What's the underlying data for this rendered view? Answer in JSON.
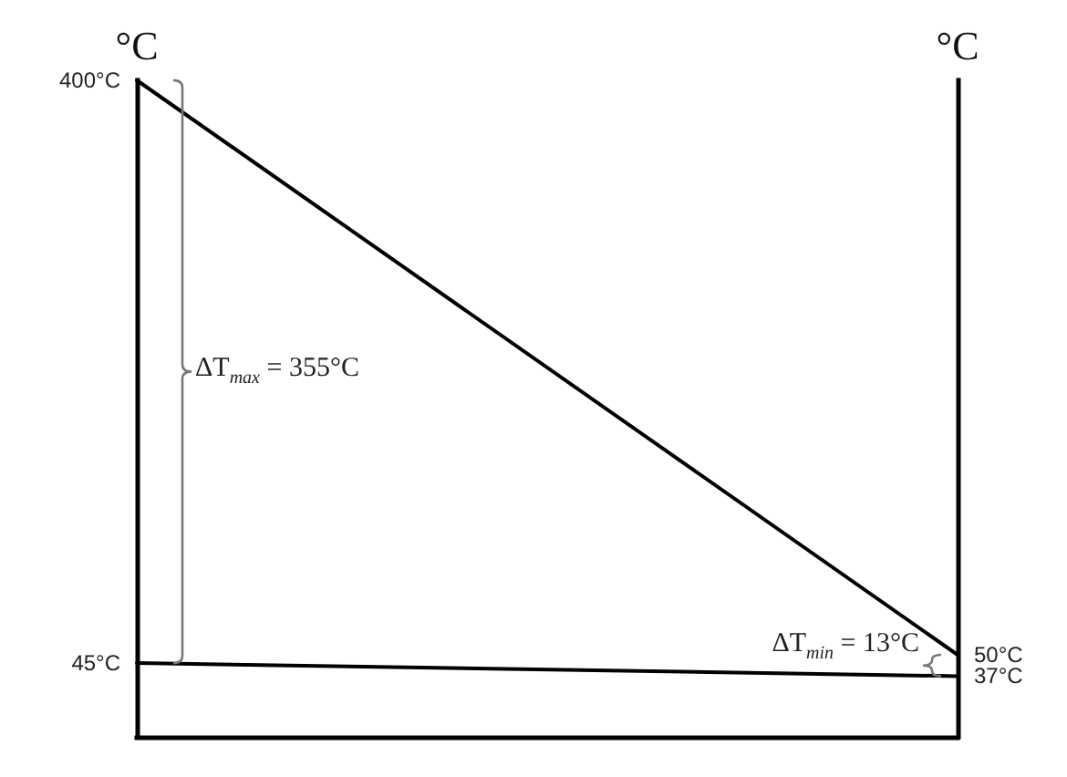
{
  "chart_data": {
    "type": "line",
    "ylabel": "°C",
    "y2label": "°C",
    "categories": [
      null,
      null
    ],
    "series": [
      {
        "color": "#000000",
        "values": [
          400,
          50
        ],
        "value_labels": [
          "400°C",
          "50°C"
        ]
      },
      {
        "color": "#000000",
        "values": [
          45,
          37
        ],
        "value_labels": [
          "45°C",
          "37°C"
        ]
      }
    ],
    "annotations": [
      "ΔT$_{max}$ = 355°C",
      "ΔT$_{min}$ = 13°C"
    ]
  }
}
